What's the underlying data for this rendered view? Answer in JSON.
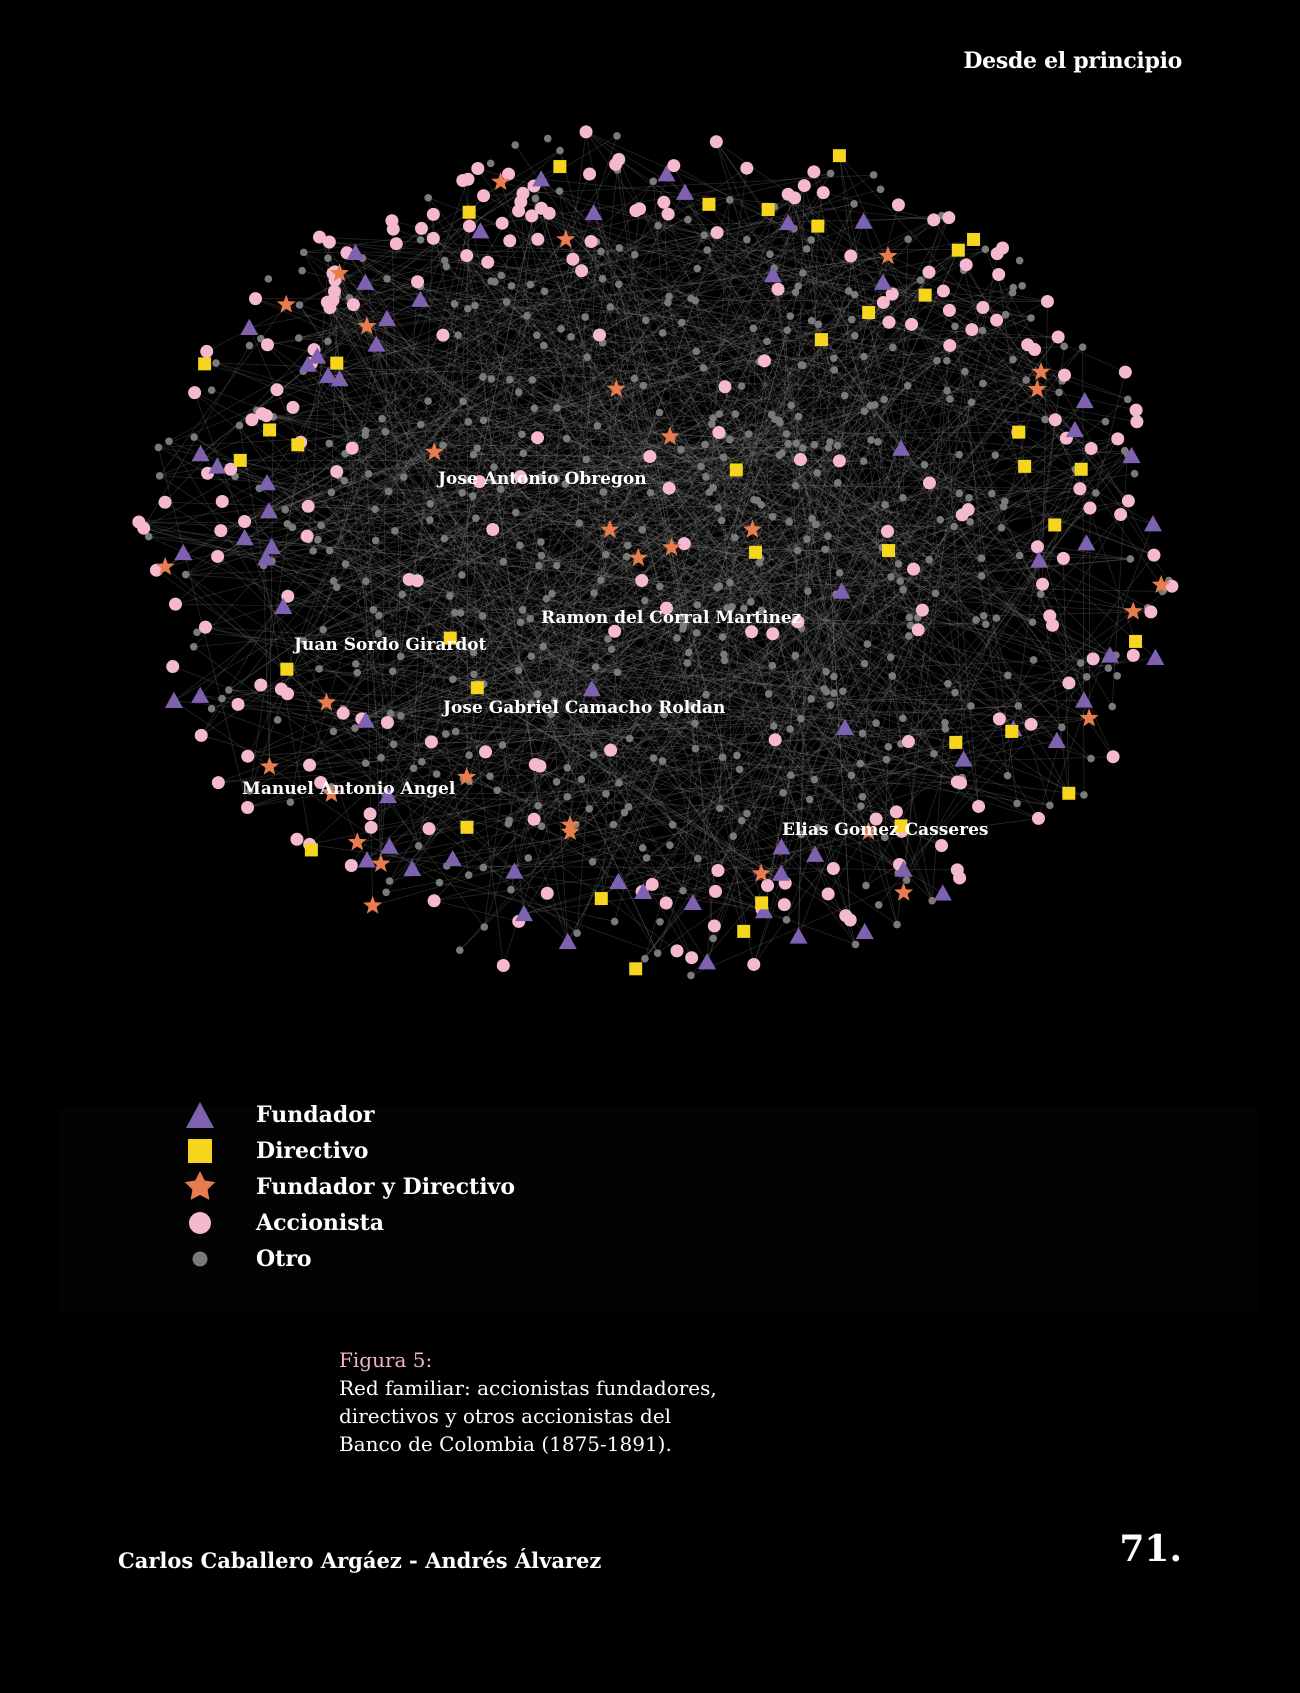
{
  "header": {
    "title": "Desde el principio"
  },
  "network": {
    "colors": {
      "background": "#000000",
      "edge": "#8a8a8a",
      "fundador": "#7e62b0",
      "directivo": "#f5d51d",
      "fundador_y_directivo": "#e87c4f",
      "accionista": "#f5b9cf",
      "otro": "#7a7a7a"
    },
    "labels": [
      "Jose Antonio Obregon",
      "Ramon del Corral Martinez",
      "Juan Sordo Girardot",
      "Jose Gabriel Camacho Roldan",
      "Manuel Antonio Angel",
      "Elias Gomez Casseres"
    ]
  },
  "legend": {
    "items": [
      {
        "label": "Fundador",
        "icon": "triangle-icon",
        "color": "#7e62b0"
      },
      {
        "label": "Directivo",
        "icon": "square-icon",
        "color": "#f5d51d"
      },
      {
        "label": "Fundador y Directivo",
        "icon": "star-icon",
        "color": "#e87c4f"
      },
      {
        "label": "Accionista",
        "icon": "circle-icon",
        "color": "#f5b9cf"
      },
      {
        "label": "Otro",
        "icon": "small-circle-icon",
        "color": "#7a7a7a"
      }
    ]
  },
  "caption": {
    "title": "Figura 5:",
    "line1": "Red familiar: accionistas fundadores,",
    "line2": "directivos y otros accionistas del",
    "line3": "Banco de Colombia (1875-1891)."
  },
  "footer": {
    "authors": "Carlos Caballero Argáez - Andrés Álvarez",
    "page_number": "71."
  }
}
